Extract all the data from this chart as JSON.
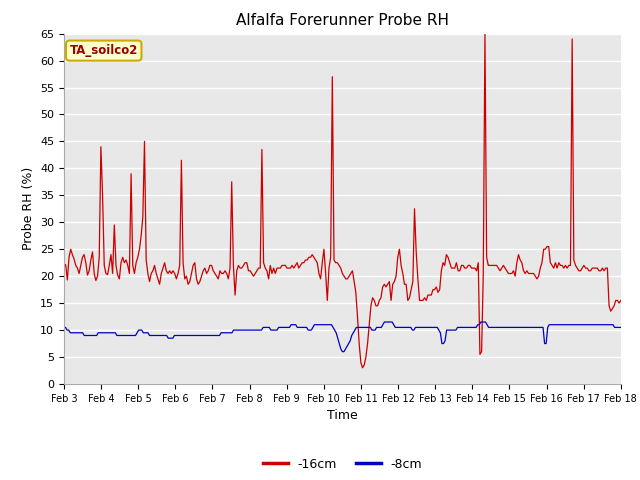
{
  "title": "Alfalfa Forerunner Probe RH",
  "xlabel": "Time",
  "ylabel": "Probe RH (%)",
  "annotation": "TA_soilco2",
  "ylim": [
    0,
    65
  ],
  "yticks": [
    0,
    5,
    10,
    15,
    20,
    25,
    30,
    35,
    40,
    45,
    50,
    55,
    60,
    65
  ],
  "xtick_labels": [
    "Feb 3",
    "Feb 4",
    "Feb 5",
    "Feb 6",
    "Feb 7",
    "Feb 8",
    "Feb 9",
    "Feb 10",
    "Feb 11",
    "Feb 12",
    "Feb 13",
    "Feb 14",
    "Feb 15",
    "Feb 16",
    "Feb 17",
    "Feb 18"
  ],
  "color_red": "#cc0000",
  "color_blue": "#0000cc",
  "legend_labels": [
    "-16cm",
    "-8cm"
  ],
  "background_color": "#ffffff",
  "plot_bg_color": "#e8e8e8",
  "annotation_bg": "#ffffcc",
  "annotation_border": "#ccaa00",
  "red_data": [
    22.3,
    22.1,
    19.3,
    23.5,
    25.0,
    24.0,
    23.2,
    22.0,
    21.5,
    20.5,
    22.0,
    23.5,
    24.0,
    22.5,
    20.2,
    21.0,
    23.0,
    24.5,
    20.5,
    19.2,
    20.0,
    23.5,
    44.0,
    35.0,
    22.0,
    20.5,
    20.3,
    22.0,
    24.0,
    20.5,
    29.5,
    22.0,
    20.2,
    19.5,
    22.5,
    23.5,
    22.5,
    23.0,
    22.0,
    20.5,
    39.0,
    22.0,
    20.5,
    22.5,
    23.5,
    25.0,
    27.5,
    31.0,
    45.0,
    23.0,
    20.5,
    19.0,
    20.5,
    21.0,
    22.0,
    20.5,
    19.5,
    18.5,
    20.5,
    21.5,
    22.5,
    21.0,
    20.5,
    21.0,
    20.5,
    21.0,
    20.5,
    19.5,
    20.5,
    22.0,
    41.5,
    22.5,
    19.5,
    20.0,
    18.5,
    19.0,
    20.5,
    22.0,
    22.5,
    19.5,
    18.5,
    19.0,
    20.0,
    21.0,
    21.5,
    20.5,
    21.0,
    22.0,
    22.0,
    21.0,
    20.5,
    20.0,
    19.5,
    21.0,
    20.5,
    20.5,
    21.0,
    20.5,
    19.5,
    21.5,
    37.5,
    22.0,
    16.5,
    21.0,
    22.0,
    21.5,
    21.5,
    22.0,
    22.5,
    22.5,
    21.0,
    21.0,
    20.5,
    20.0,
    20.5,
    21.0,
    21.5,
    21.5,
    43.5,
    22.5,
    21.5,
    21.0,
    19.5,
    22.0,
    20.5,
    21.5,
    20.5,
    21.5,
    21.5,
    21.5,
    22.0,
    22.0,
    22.0,
    21.5,
    21.5,
    21.5,
    22.0,
    21.5,
    22.0,
    22.5,
    21.5,
    22.0,
    22.5,
    22.5,
    23.0,
    23.0,
    23.5,
    23.5,
    24.0,
    23.5,
    23.0,
    22.5,
    20.5,
    19.5,
    22.5,
    25.0,
    20.5,
    15.5,
    21.5,
    23.5,
    57.0,
    23.0,
    22.5,
    22.5,
    22.0,
    21.5,
    20.5,
    20.0,
    19.5,
    19.5,
    20.0,
    20.5,
    21.0,
    19.0,
    17.0,
    12.5,
    7.5,
    4.0,
    3.0,
    3.5,
    5.0,
    7.5,
    11.0,
    14.5,
    16.0,
    15.5,
    14.5,
    14.5,
    15.5,
    16.0,
    18.0,
    18.5,
    18.0,
    18.5,
    19.0,
    15.5,
    18.5,
    19.0,
    20.0,
    23.5,
    25.0,
    22.0,
    20.5,
    18.5,
    18.5,
    15.5,
    16.0,
    17.5,
    19.0,
    32.5,
    24.5,
    19.5,
    15.5,
    15.5,
    15.5,
    16.0,
    15.5,
    16.5,
    16.5,
    16.5,
    17.5,
    17.5,
    18.0,
    17.0,
    17.5,
    21.0,
    22.5,
    22.0,
    24.0,
    23.5,
    22.5,
    21.5,
    21.5,
    21.5,
    22.5,
    21.0,
    21.0,
    22.0,
    22.0,
    21.5,
    21.5,
    22.0,
    22.0,
    21.5,
    21.5,
    21.5,
    21.0,
    22.5,
    5.5,
    6.0,
    20.5,
    65.0,
    23.5,
    22.0,
    22.0,
    22.0,
    22.0,
    22.0,
    22.0,
    21.5,
    21.0,
    21.5,
    22.0,
    21.5,
    21.0,
    20.5,
    20.5,
    20.5,
    21.0,
    20.0,
    22.5,
    24.0,
    23.0,
    22.5,
    21.0,
    20.5,
    21.0,
    20.5,
    20.5,
    20.5,
    20.5,
    20.0,
    19.5,
    20.0,
    21.5,
    22.5,
    25.0,
    25.0,
    25.5,
    25.5,
    22.5,
    22.0,
    21.5,
    22.5,
    21.5,
    22.5,
    22.0,
    22.0,
    21.5,
    22.0,
    21.5,
    22.0,
    22.0,
    64.0,
    23.0,
    22.0,
    21.5,
    21.0,
    21.0,
    21.5,
    22.0,
    21.5,
    21.5,
    21.0,
    21.0,
    21.5,
    21.5,
    21.5,
    21.5,
    21.0,
    21.0,
    21.5,
    21.0,
    21.5,
    21.5,
    14.5,
    13.5,
    14.0,
    14.5,
    15.5,
    15.5,
    15.0,
    15.5
  ],
  "blue_data": [
    10.5,
    10.5,
    10.0,
    10.0,
    9.5,
    9.5,
    9.5,
    9.5,
    9.5,
    9.5,
    9.5,
    9.5,
    9.5,
    9.0,
    9.0,
    9.0,
    9.0,
    9.0,
    9.0,
    9.0,
    9.0,
    9.0,
    9.5,
    9.5,
    9.5,
    9.5,
    9.5,
    9.5,
    9.5,
    9.5,
    9.5,
    9.5,
    9.5,
    9.5,
    9.0,
    9.0,
    9.0,
    9.0,
    9.0,
    9.0,
    9.0,
    9.0,
    9.0,
    9.0,
    9.0,
    9.0,
    9.0,
    9.5,
    10.0,
    10.0,
    10.0,
    9.5,
    9.5,
    9.5,
    9.5,
    9.0,
    9.0,
    9.0,
    9.0,
    9.0,
    9.0,
    9.0,
    9.0,
    9.0,
    9.0,
    9.0,
    9.0,
    8.5,
    8.5,
    8.5,
    8.5,
    9.0,
    9.0,
    9.0,
    9.0,
    9.0,
    9.0,
    9.0,
    9.0,
    9.0,
    9.0,
    9.0,
    9.0,
    9.0,
    9.0,
    9.0,
    9.0,
    9.0,
    9.0,
    9.0,
    9.0,
    9.0,
    9.0,
    9.0,
    9.0,
    9.0,
    9.0,
    9.0,
    9.0,
    9.0,
    9.0,
    9.5,
    9.5,
    9.5,
    9.5,
    9.5,
    9.5,
    9.5,
    9.5,
    10.0,
    10.0,
    10.0,
    10.0,
    10.0,
    10.0,
    10.0,
    10.0,
    10.0,
    10.0,
    10.0,
    10.0,
    10.0,
    10.0,
    10.0,
    10.0,
    10.0,
    10.0,
    10.0,
    10.5,
    10.5,
    10.5,
    10.5,
    10.5,
    10.0,
    10.0,
    10.0,
    10.0,
    10.0,
    10.5,
    10.5,
    10.5,
    10.5,
    10.5,
    10.5,
    10.5,
    10.5,
    11.0,
    11.0,
    11.0,
    11.0,
    10.5,
    10.5,
    10.5,
    10.5,
    10.5,
    10.5,
    10.5,
    10.0,
    10.0,
    10.0,
    10.5,
    11.0,
    11.0,
    11.0,
    11.0,
    11.0,
    11.0,
    11.0,
    11.0,
    11.0,
    11.0,
    11.0,
    11.0,
    10.5,
    10.0,
    9.5,
    8.5,
    7.5,
    6.5,
    6.0,
    6.0,
    6.5,
    7.0,
    7.5,
    8.0,
    9.0,
    9.5,
    10.0,
    10.5,
    10.5,
    10.5,
    10.5,
    10.5,
    10.5,
    10.5,
    10.5,
    10.5,
    10.5,
    10.0,
    10.0,
    10.0,
    10.5,
    10.5,
    10.5,
    10.5,
    11.0,
    11.5,
    11.5,
    11.5,
    11.5,
    11.5,
    11.5,
    11.0,
    10.5,
    10.5,
    10.5,
    10.5,
    10.5,
    10.5,
    10.5,
    10.5,
    10.5,
    10.5,
    10.5,
    10.0,
    10.0,
    10.5,
    10.5,
    10.5,
    10.5,
    10.5,
    10.5,
    10.5,
    10.5,
    10.5,
    10.5,
    10.5,
    10.5,
    10.5,
    10.5,
    10.5,
    10.0,
    9.5,
    7.5,
    7.5,
    8.0,
    10.0,
    10.0,
    10.0,
    10.0,
    10.0,
    10.0,
    10.0,
    10.5,
    10.5,
    10.5,
    10.5,
    10.5,
    10.5,
    10.5,
    10.5,
    10.5,
    10.5,
    10.5,
    10.5,
    10.5,
    11.0,
    11.0,
    11.5,
    11.5,
    11.5,
    11.5,
    11.0,
    10.5,
    10.5,
    10.5,
    10.5,
    10.5,
    10.5,
    10.5,
    10.5,
    10.5,
    10.5,
    10.5,
    10.5,
    10.5,
    10.5,
    10.5,
    10.5,
    10.5,
    10.5,
    10.5,
    10.5,
    10.5,
    10.5,
    10.5,
    10.5,
    10.5,
    10.5,
    10.5,
    10.5,
    10.5,
    10.5,
    10.5,
    10.5,
    10.5,
    10.5,
    10.5,
    10.5,
    7.5,
    7.5,
    10.5,
    11.0,
    11.0,
    11.0,
    11.0,
    11.0,
    11.0,
    11.0,
    11.0,
    11.0,
    11.0,
    11.0,
    11.0,
    11.0,
    11.0,
    11.0,
    11.0,
    11.0,
    11.0,
    11.0,
    11.0,
    11.0,
    11.0,
    11.0,
    11.0,
    11.0,
    11.0,
    11.0,
    11.0,
    11.0,
    11.0,
    11.0,
    11.0,
    11.0,
    11.0,
    11.0,
    11.0,
    11.0,
    11.0,
    11.0,
    11.0,
    11.0,
    11.0,
    10.5,
    10.5,
    10.5,
    10.5,
    10.5
  ]
}
